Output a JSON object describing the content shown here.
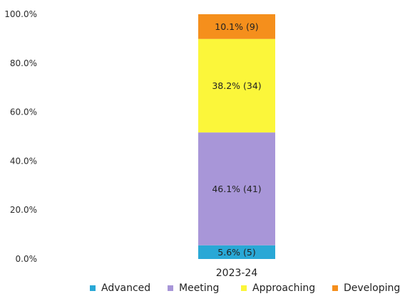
{
  "chart_data": {
    "type": "bar",
    "stacked": true,
    "categories": [
      "2023-24"
    ],
    "y_ticks": [
      "0.0%",
      "20.0%",
      "40.0%",
      "60.0%",
      "80.0%",
      "100.0%"
    ],
    "ylim": [
      0,
      100
    ],
    "grid": false,
    "legend_position": "bottom",
    "series": [
      {
        "name": "Advanced",
        "values": [
          5.6
        ],
        "label": "5.6% (5)",
        "color": "#29a8d6"
      },
      {
        "name": "Meeting",
        "values": [
          46.1
        ],
        "label": "46.1% (41)",
        "color": "#a896d8"
      },
      {
        "name": "Approaching",
        "values": [
          38.2
        ],
        "label": "38.2% (34)",
        "color": "#fbf63a"
      },
      {
        "name": "Developing",
        "values": [
          10.1
        ],
        "label": "10.1% (9)",
        "color": "#f58f1c"
      }
    ]
  }
}
